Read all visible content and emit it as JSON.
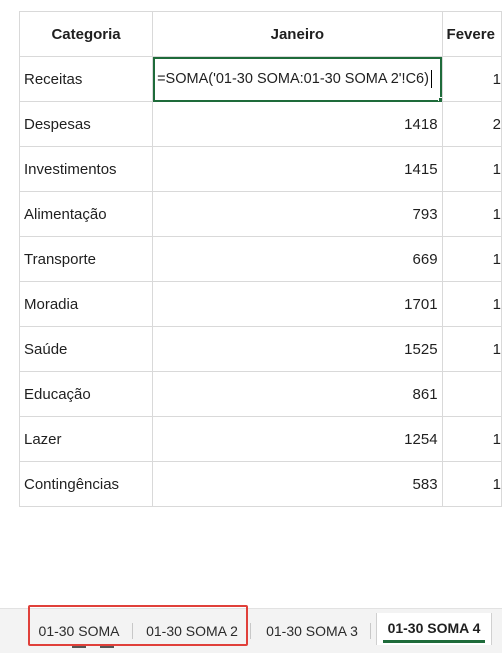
{
  "table": {
    "headers": [
      "Categoria",
      "Janeiro",
      "Fevere"
    ],
    "editing_formula": "=SOMA('01-30 SOMA:01-30 SOMA 2'!C6)",
    "rows": [
      {
        "category": "Receitas",
        "jan": "",
        "fev": "1"
      },
      {
        "category": "Despesas",
        "jan": "1418",
        "fev": "2"
      },
      {
        "category": "Investimentos",
        "jan": "1415",
        "fev": "1"
      },
      {
        "category": "Alimentação",
        "jan": "793",
        "fev": "1"
      },
      {
        "category": "Transporte",
        "jan": "669",
        "fev": "1"
      },
      {
        "category": "Moradia",
        "jan": "1701",
        "fev": "1"
      },
      {
        "category": "Saúde",
        "jan": "1525",
        "fev": "1"
      },
      {
        "category": "Educação",
        "jan": "861",
        "fev": ""
      },
      {
        "category": "Lazer",
        "jan": "1254",
        "fev": "1"
      },
      {
        "category": "Contingências",
        "jan": "583",
        "fev": "1"
      }
    ]
  },
  "sheet_tabs": [
    {
      "label": "01-30 SOMA",
      "active": false
    },
    {
      "label": "01-30 SOMA 2",
      "active": false
    },
    {
      "label": "01-30 SOMA 3",
      "active": false
    },
    {
      "label": "01-30 SOMA 4",
      "active": true
    }
  ],
  "colors": {
    "accent": "#1e6b3a",
    "highlight": "#e0403a",
    "gridline": "#d9d9d9"
  }
}
